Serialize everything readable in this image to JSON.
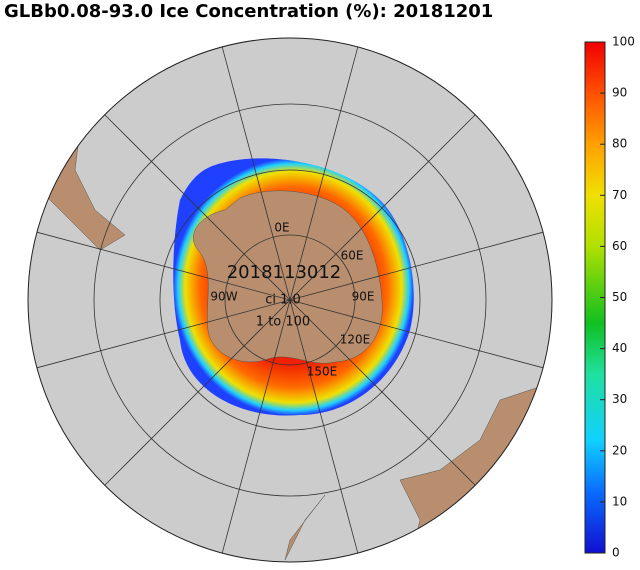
{
  "title": "GLBb0.08-93.0 Ice Concentration (%): 20181201",
  "map": {
    "center_text": [
      "2018113012",
      "ci 1.0",
      "1 to 100"
    ],
    "longitude_labels": [
      "0E",
      "60E",
      "90E",
      "120E",
      "150E",
      "90W"
    ]
  },
  "colorbar": {
    "range": [
      0,
      100
    ],
    "ticks": [
      0,
      10,
      20,
      30,
      40,
      50,
      60,
      70,
      80,
      90,
      100
    ]
  }
}
